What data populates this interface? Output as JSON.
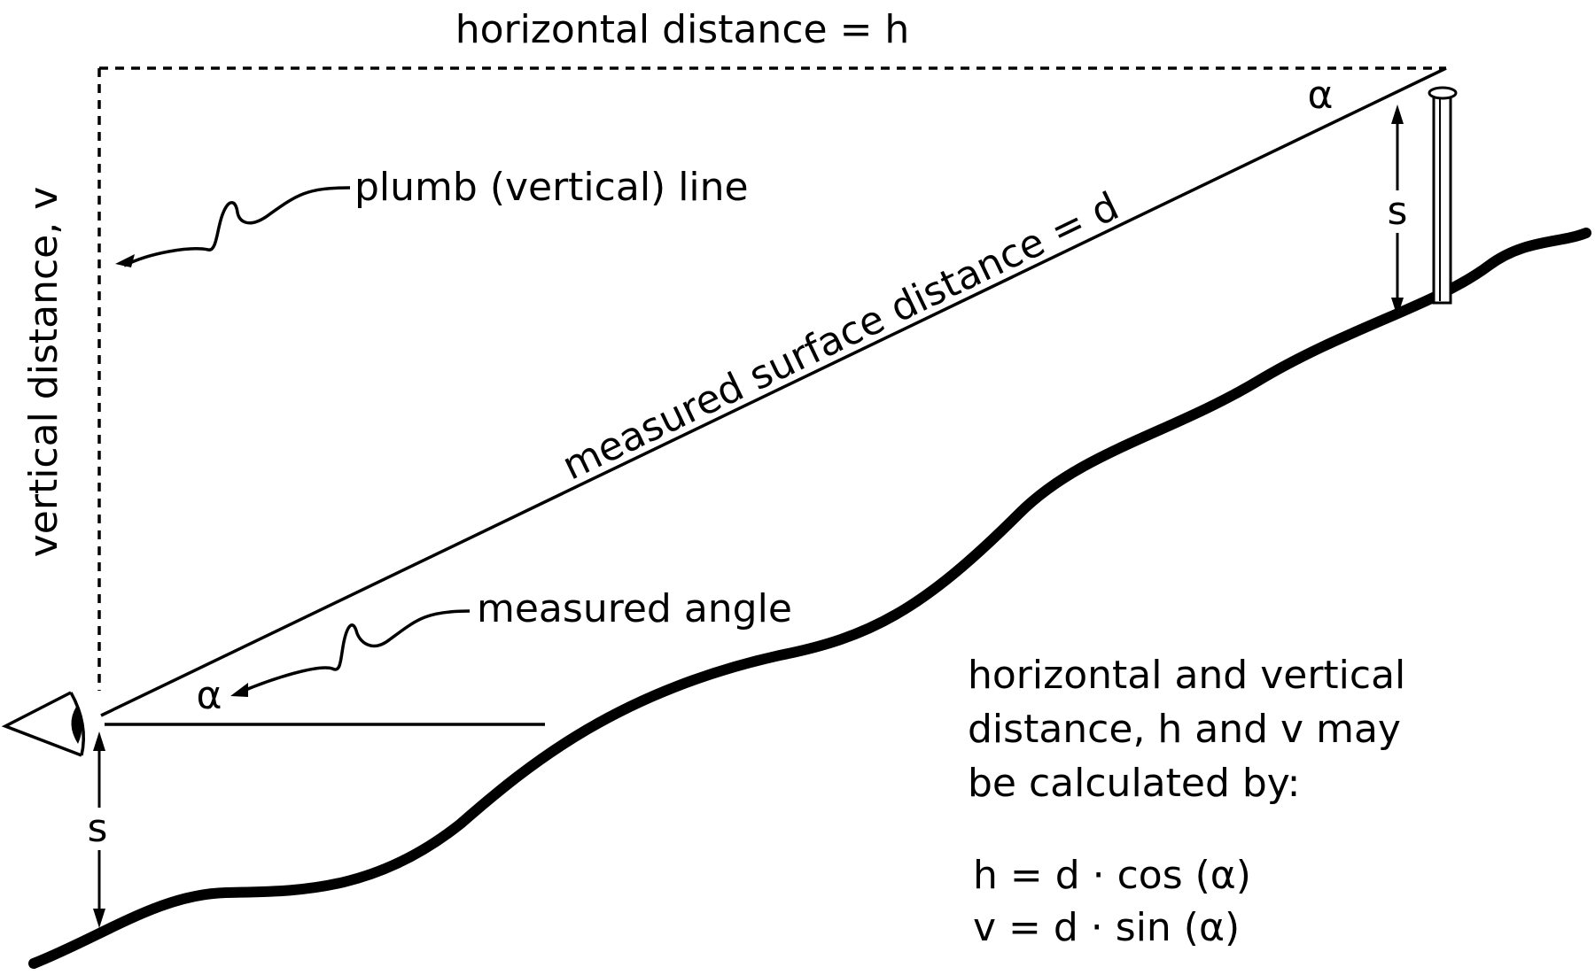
{
  "labels": {
    "horizontal": "horizontal distance = h",
    "vertical": "vertical distance, v",
    "plumb": "plumb (vertical) line",
    "surface": "measured surface distance = d",
    "angle_label": "measured angle",
    "alpha_bottom": "α",
    "alpha_top": "α",
    "s_left": "s",
    "s_right": "s"
  },
  "explanation": {
    "line1": "horizontal and vertical",
    "line2": "distance, h and v may",
    "line3": "be calculated by:"
  },
  "formulas": {
    "h": "h = d · cos (α)",
    "v": "v = d · sin (α)"
  },
  "icons": {
    "eye": "eye-icon",
    "rod": "survey-rod-icon"
  },
  "colors": {
    "ink": "#000000",
    "background": "#ffffff"
  }
}
